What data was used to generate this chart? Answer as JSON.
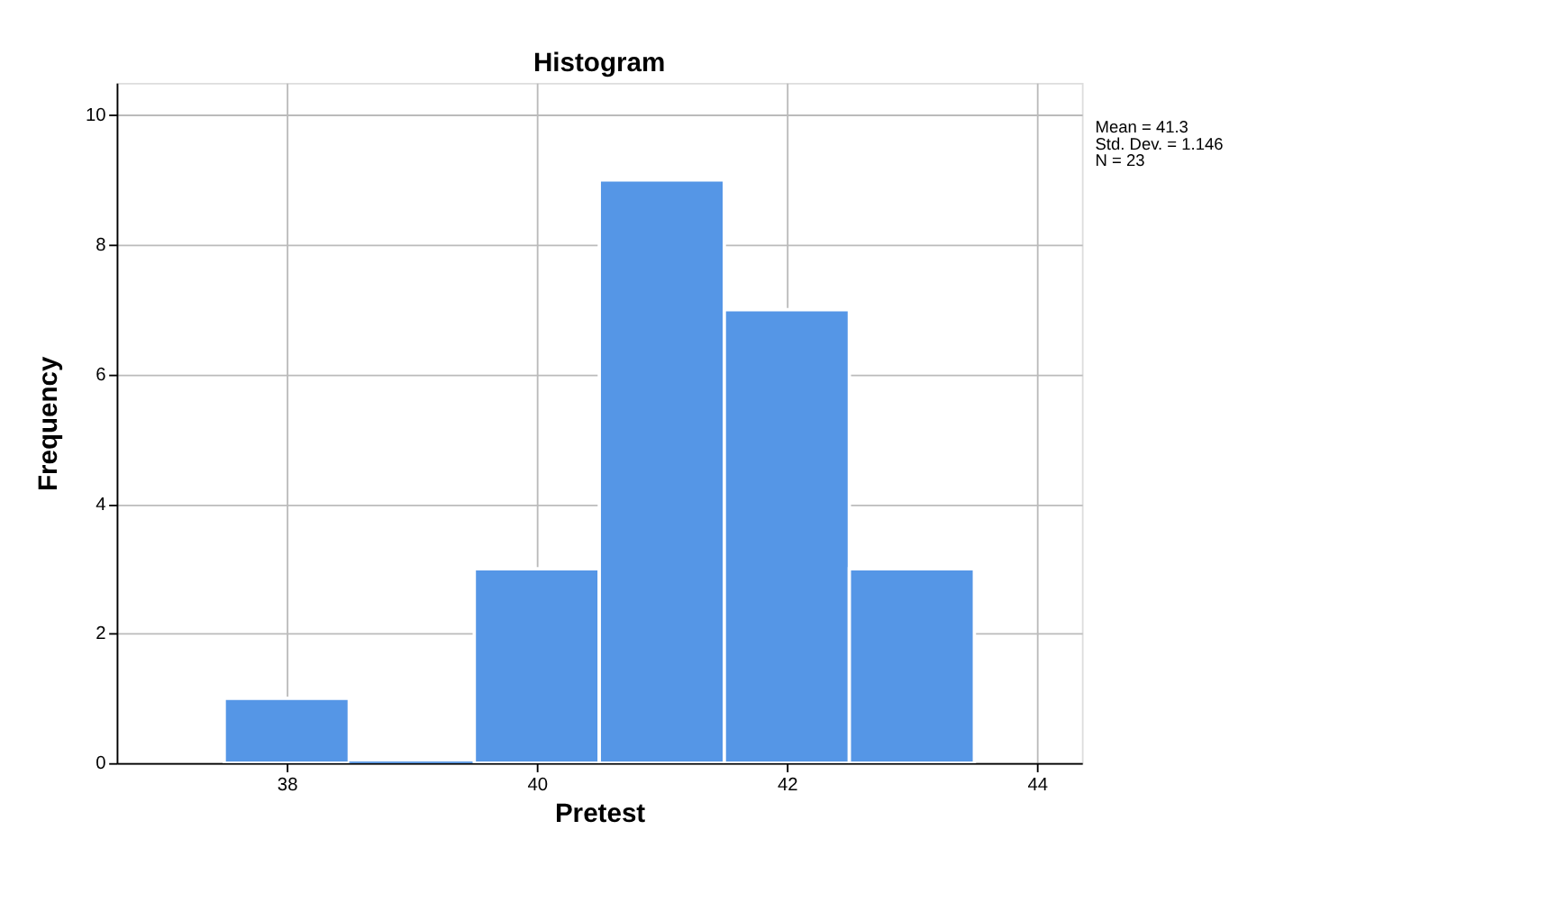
{
  "chart_data": {
    "type": "histogram",
    "title": "Histogram",
    "xlabel": "Pretest",
    "ylabel": "Frequency",
    "bins": [
      37.5,
      38.5,
      39.5,
      40.5,
      41.5,
      42.5,
      43.5
    ],
    "values": [
      1,
      0,
      3,
      9,
      7,
      3
    ],
    "color": "#5596e6",
    "xlim": [
      36.64,
      44.36
    ],
    "xticks": [
      38,
      40,
      42,
      44
    ],
    "ylim": [
      0,
      10.5
    ],
    "yticks": [
      0,
      2,
      4,
      6,
      8,
      10
    ],
    "grid": true,
    "annotations": [
      "Mean = 41.3",
      "Std. Dev. = 1.146",
      "N = 23"
    ]
  }
}
